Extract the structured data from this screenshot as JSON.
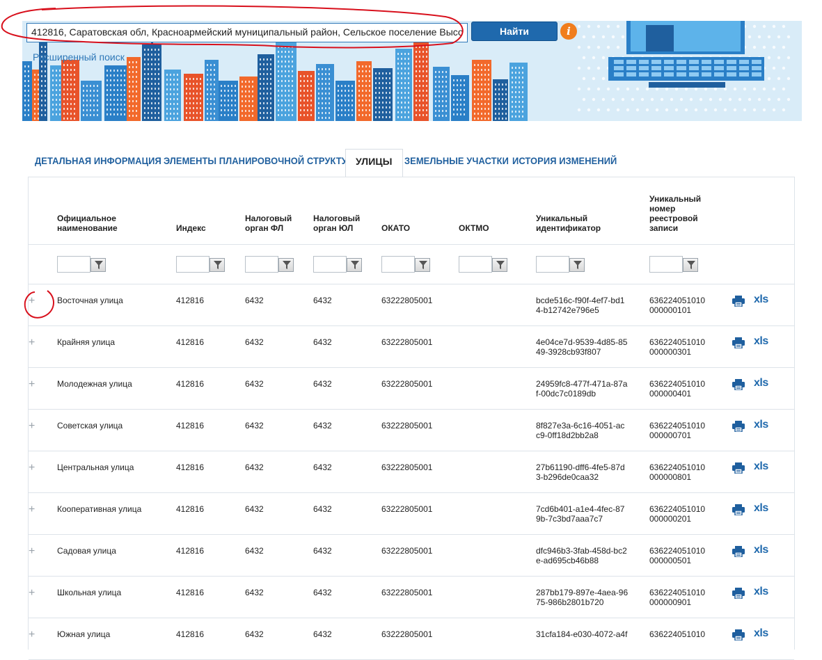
{
  "search": {
    "value": "412816, Саратовская обл, Красноармейский муниципальный район, Сельское поселение Высо",
    "find_label": "Найти",
    "info_label": "i",
    "advanced_label": "Расширенный поиск"
  },
  "tabs": [
    {
      "label": "Детальная информация",
      "active": false
    },
    {
      "label": "Элементы планировочной структуры",
      "active": false
    },
    {
      "label": "Улицы",
      "active": true
    },
    {
      "label": "Земельные участки",
      "active": false
    },
    {
      "label": "История изменений",
      "active": false
    }
  ],
  "table": {
    "columns": [
      [
        "Официальное",
        "наименование"
      ],
      [
        "Индекс"
      ],
      [
        "Налоговый",
        "орган ФЛ"
      ],
      [
        "Налоговый",
        "орган ЮЛ"
      ],
      [
        "ОКАТО"
      ],
      [
        "ОКТМО"
      ],
      [
        "Уникальный",
        "идентификатор"
      ],
      [
        "Уникальный",
        "номер",
        "реестровой",
        "записи"
      ]
    ],
    "rows": [
      {
        "name": "Восточная улица",
        "index": "412816",
        "fl": "6432",
        "ul": "6432",
        "okato": "63222805001",
        "oktmo": "",
        "uid1": "bcde516c-f90f-4ef7-bd1",
        "uid2": "4-b12742e796e5",
        "rec1": "636224051010",
        "rec2": "000000101"
      },
      {
        "name": "Крайняя улица",
        "index": "412816",
        "fl": "6432",
        "ul": "6432",
        "okato": "63222805001",
        "oktmo": "",
        "uid1": "4e04ce7d-9539-4d85-85",
        "uid2": "49-3928cb93f807",
        "rec1": "636224051010",
        "rec2": "000000301"
      },
      {
        "name": "Молодежная улица",
        "index": "412816",
        "fl": "6432",
        "ul": "6432",
        "okato": "63222805001",
        "oktmo": "",
        "uid1": "24959fc8-477f-471a-87a",
        "uid2": "f-00dc7c0189db",
        "rec1": "636224051010",
        "rec2": "000000401"
      },
      {
        "name": "Советская улица",
        "index": "412816",
        "fl": "6432",
        "ul": "6432",
        "okato": "63222805001",
        "oktmo": "",
        "uid1": "8f827e3a-6c16-4051-ac",
        "uid2": "c9-0ff18d2bb2a8",
        "rec1": "636224051010",
        "rec2": "000000701"
      },
      {
        "name": "Центральная улица",
        "index": "412816",
        "fl": "6432",
        "ul": "6432",
        "okato": "63222805001",
        "oktmo": "",
        "uid1": "27b61190-dff6-4fe5-87d",
        "uid2": "3-b296de0caa32",
        "rec1": "636224051010",
        "rec2": "000000801"
      },
      {
        "name": "Кооперативная улица",
        "index": "412816",
        "fl": "6432",
        "ul": "6432",
        "okato": "63222805001",
        "oktmo": "",
        "uid1": "7cd6b401-a1e4-4fec-87",
        "uid2": "9b-7c3bd7aaa7c7",
        "rec1": "636224051010",
        "rec2": "000000201"
      },
      {
        "name": "Садовая улица",
        "index": "412816",
        "fl": "6432",
        "ul": "6432",
        "okato": "63222805001",
        "oktmo": "",
        "uid1": "dfc946b3-3fab-458d-bc2",
        "uid2": "e-ad695cb46b88",
        "rec1": "636224051010",
        "rec2": "000000501"
      },
      {
        "name": "Школьная улица",
        "index": "412816",
        "fl": "6432",
        "ul": "6432",
        "okato": "63222805001",
        "oktmo": "",
        "uid1": "287bb179-897e-4aea-96",
        "uid2": "75-986b2801b720",
        "rec1": "636224051010",
        "rec2": "000000901"
      },
      {
        "name": "Южная улица",
        "index": "412816",
        "fl": "6432",
        "ul": "6432",
        "okato": "63222805001",
        "oktmo": "",
        "uid1": "31cfa184-e030-4072-a4f",
        "uid2": "",
        "rec1": "636224051010",
        "rec2": ""
      }
    ],
    "xls_label": "xls",
    "plus_label": "+"
  },
  "colors": {
    "accent": "#1f69ad",
    "link": "#2d77b7",
    "info": "#f07d1d",
    "annotation": "#d8101c"
  }
}
